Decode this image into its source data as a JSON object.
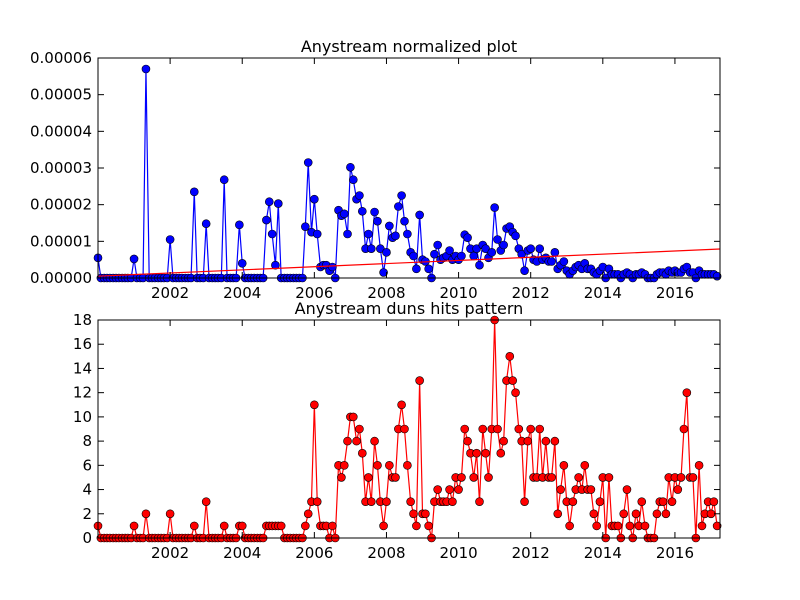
{
  "chart_data": [
    {
      "type": "line",
      "title": "Anystream normalized plot",
      "xlim": [
        2000,
        2017.25
      ],
      "xticks": [
        2002,
        2004,
        2006,
        2008,
        2010,
        2012,
        2014,
        2016
      ],
      "ylim": [
        0,
        6e-05
      ],
      "yticks": [
        {
          "value": 0,
          "label": "0.00000"
        },
        {
          "value": 1e-05,
          "label": "0.00001"
        },
        {
          "value": 2e-05,
          "label": "0.00002"
        },
        {
          "value": 3e-05,
          "label": "0.00003"
        },
        {
          "value": 4e-05,
          "label": "0.00004"
        },
        {
          "value": 5e-05,
          "label": "0.00005"
        },
        {
          "value": 6e-05,
          "label": "0.00006"
        }
      ],
      "series": [
        {
          "color": "#0000ff",
          "marker": true,
          "x": [
            2000,
            2000.08,
            2000.17,
            2000.25,
            2000.33,
            2000.42,
            2000.5,
            2000.58,
            2000.67,
            2000.75,
            2000.83,
            2000.92,
            2001,
            2001.08,
            2001.17,
            2001.25,
            2001.33,
            2001.42,
            2001.5,
            2001.58,
            2001.67,
            2001.75,
            2001.83,
            2001.92,
            2002,
            2002.08,
            2002.17,
            2002.25,
            2002.33,
            2002.42,
            2002.5,
            2002.58,
            2002.67,
            2002.75,
            2002.83,
            2002.92,
            2003,
            2003.08,
            2003.17,
            2003.25,
            2003.33,
            2003.42,
            2003.5,
            2003.58,
            2003.67,
            2003.75,
            2003.83,
            2003.92,
            2004,
            2004.08,
            2004.17,
            2004.25,
            2004.33,
            2004.42,
            2004.5,
            2004.58,
            2004.67,
            2004.75,
            2004.83,
            2004.92,
            2005,
            2005.08,
            2005.17,
            2005.25,
            2005.33,
            2005.42,
            2005.5,
            2005.58,
            2005.67,
            2005.75,
            2005.83,
            2005.92,
            2006,
            2006.08,
            2006.17,
            2006.25,
            2006.33,
            2006.42,
            2006.5,
            2006.58,
            2006.67,
            2006.75,
            2006.83,
            2006.92,
            2007,
            2007.08,
            2007.17,
            2007.25,
            2007.33,
            2007.42,
            2007.5,
            2007.58,
            2007.67,
            2007.75,
            2007.83,
            2007.92,
            2008,
            2008.08,
            2008.17,
            2008.25,
            2008.33,
            2008.42,
            2008.5,
            2008.58,
            2008.67,
            2008.75,
            2008.83,
            2008.92,
            2009,
            2009.08,
            2009.17,
            2009.25,
            2009.33,
            2009.42,
            2009.5,
            2009.58,
            2009.67,
            2009.75,
            2009.83,
            2009.92,
            2010,
            2010.08,
            2010.17,
            2010.25,
            2010.33,
            2010.42,
            2010.5,
            2010.58,
            2010.67,
            2010.75,
            2010.83,
            2010.92,
            2011,
            2011.08,
            2011.17,
            2011.25,
            2011.33,
            2011.42,
            2011.5,
            2011.58,
            2011.67,
            2011.75,
            2011.83,
            2011.92,
            2012,
            2012.08,
            2012.17,
            2012.25,
            2012.33,
            2012.42,
            2012.5,
            2012.58,
            2012.67,
            2012.75,
            2012.83,
            2012.92,
            2013,
            2013.08,
            2013.17,
            2013.25,
            2013.33,
            2013.42,
            2013.5,
            2013.58,
            2013.67,
            2013.75,
            2013.83,
            2013.92,
            2014,
            2014.08,
            2014.17,
            2014.25,
            2014.33,
            2014.42,
            2014.5,
            2014.58,
            2014.67,
            2014.75,
            2014.83,
            2014.92,
            2015,
            2015.08,
            2015.17,
            2015.25,
            2015.33,
            2015.42,
            2015.5,
            2015.58,
            2015.67,
            2015.75,
            2015.83,
            2015.92,
            2016,
            2016.08,
            2016.17,
            2016.25,
            2016.33,
            2016.42,
            2016.5,
            2016.58,
            2016.67,
            2016.75,
            2016.83,
            2016.92,
            2017,
            2017.08,
            2017.17
          ],
          "values": [
            5.5e-06,
            0,
            0,
            0,
            0,
            0,
            0,
            0,
            0,
            0,
            0,
            0,
            5.2e-06,
            0,
            0,
            0,
            5.7e-05,
            0,
            0,
            0,
            0,
            0,
            0,
            0,
            1.05e-05,
            0,
            0,
            0,
            0,
            0,
            0,
            0,
            2.35e-05,
            0,
            0,
            0,
            1.48e-05,
            0,
            0,
            0,
            0,
            0,
            2.68e-05,
            0,
            0,
            0,
            0,
            1.45e-05,
            4e-06,
            0,
            0,
            0,
            0,
            0,
            0,
            0,
            1.58e-05,
            2.08e-05,
            1.2e-05,
            3.5e-06,
            2.03e-05,
            0,
            0,
            0,
            0,
            0,
            0,
            0,
            0,
            1.4e-05,
            3.15e-05,
            1.25e-05,
            2.15e-05,
            1.2e-05,
            3e-06,
            3.5e-06,
            3.5e-06,
            2e-06,
            3e-06,
            0,
            1.85e-05,
            1.7e-05,
            1.75e-05,
            1.2e-05,
            3.02e-05,
            2.68e-05,
            2.15e-05,
            2.25e-05,
            1.82e-05,
            8e-06,
            1.2e-05,
            8e-06,
            1.8e-05,
            1.55e-05,
            8e-06,
            1.5e-06,
            7e-06,
            1.42e-05,
            1.1e-05,
            1.15e-05,
            1.95e-05,
            2.25e-05,
            1.55e-05,
            1.2e-05,
            7e-06,
            6e-06,
            2.5e-06,
            1.72e-05,
            5e-06,
            4.5e-06,
            2.5e-06,
            0,
            6.5e-06,
            9e-06,
            5e-06,
            5.5e-06,
            6e-06,
            7.5e-06,
            5e-06,
            6e-06,
            5e-06,
            6e-06,
            1.18e-05,
            1.1e-05,
            8e-06,
            6e-06,
            8e-06,
            3.5e-06,
            9e-06,
            8e-06,
            5.5e-06,
            7e-06,
            1.92e-05,
            1.05e-05,
            7.5e-06,
            9e-06,
            1.35e-05,
            1.4e-05,
            1.25e-05,
            1.15e-05,
            8e-06,
            6.5e-06,
            2e-06,
            7.5e-06,
            8e-06,
            5e-06,
            4.5e-06,
            8e-06,
            5e-06,
            5.5e-06,
            4.5e-06,
            4.5e-06,
            7e-06,
            2.5e-06,
            3.5e-06,
            4.5e-06,
            2e-06,
            1e-06,
            2e-06,
            3e-06,
            3.5e-06,
            2.5e-06,
            4e-06,
            2.5e-06,
            2.5e-06,
            1.5e-06,
            1e-06,
            2e-06,
            3e-06,
            0,
            2.5e-06,
            1e-06,
            1e-06,
            1e-06,
            0,
            1e-06,
            1.5e-06,
            1e-06,
            0,
            1e-06,
            1e-06,
            1.5e-06,
            1e-06,
            0,
            0,
            0,
            1e-06,
            1.5e-06,
            1.5e-06,
            1e-06,
            2e-06,
            1.5e-06,
            2e-06,
            1.5e-06,
            1.5e-06,
            2.5e-06,
            3e-06,
            1.5e-06,
            1.5e-06,
            0,
            2e-06,
            1e-06,
            1e-06,
            1e-06,
            1e-06,
            1e-06,
            5e-07
          ]
        },
        {
          "color": "#ff0000",
          "marker": false,
          "x": [
            2000,
            2017.25
          ],
          "values": [
            5e-07,
            7.9e-06
          ]
        }
      ]
    },
    {
      "type": "line",
      "title": "Anystream duns hits pattern",
      "xlim": [
        2000,
        2017.25
      ],
      "xticks": [
        2002,
        2004,
        2006,
        2008,
        2010,
        2012,
        2014,
        2016
      ],
      "ylim": [
        0,
        18
      ],
      "yticks": [
        0,
        2,
        4,
        6,
        8,
        10,
        12,
        14,
        16,
        18
      ],
      "series": [
        {
          "color": "#ff0000",
          "marker": true,
          "x": [
            2000,
            2000.08,
            2000.17,
            2000.25,
            2000.33,
            2000.42,
            2000.5,
            2000.58,
            2000.67,
            2000.75,
            2000.83,
            2000.92,
            2001,
            2001.08,
            2001.17,
            2001.25,
            2001.33,
            2001.42,
            2001.5,
            2001.58,
            2001.67,
            2001.75,
            2001.83,
            2001.92,
            2002,
            2002.08,
            2002.17,
            2002.25,
            2002.33,
            2002.42,
            2002.5,
            2002.58,
            2002.67,
            2002.75,
            2002.83,
            2002.92,
            2003,
            2003.08,
            2003.17,
            2003.25,
            2003.33,
            2003.42,
            2003.5,
            2003.58,
            2003.67,
            2003.75,
            2003.83,
            2003.92,
            2004,
            2004.08,
            2004.17,
            2004.25,
            2004.33,
            2004.42,
            2004.5,
            2004.58,
            2004.67,
            2004.75,
            2004.83,
            2004.92,
            2005,
            2005.08,
            2005.17,
            2005.25,
            2005.33,
            2005.42,
            2005.5,
            2005.58,
            2005.67,
            2005.75,
            2005.83,
            2005.92,
            2006,
            2006.08,
            2006.17,
            2006.25,
            2006.33,
            2006.42,
            2006.5,
            2006.58,
            2006.67,
            2006.75,
            2006.83,
            2006.92,
            2007,
            2007.08,
            2007.17,
            2007.25,
            2007.33,
            2007.42,
            2007.5,
            2007.58,
            2007.67,
            2007.75,
            2007.83,
            2007.92,
            2008,
            2008.08,
            2008.17,
            2008.25,
            2008.33,
            2008.42,
            2008.5,
            2008.58,
            2008.67,
            2008.75,
            2008.83,
            2008.92,
            2009,
            2009.08,
            2009.17,
            2009.25,
            2009.33,
            2009.42,
            2009.5,
            2009.58,
            2009.67,
            2009.75,
            2009.83,
            2009.92,
            2010,
            2010.08,
            2010.17,
            2010.25,
            2010.33,
            2010.42,
            2010.5,
            2010.58,
            2010.67,
            2010.75,
            2010.83,
            2010.92,
            2011,
            2011.08,
            2011.17,
            2011.25,
            2011.33,
            2011.42,
            2011.5,
            2011.58,
            2011.67,
            2011.75,
            2011.83,
            2011.92,
            2012,
            2012.08,
            2012.17,
            2012.25,
            2012.33,
            2012.42,
            2012.5,
            2012.58,
            2012.67,
            2012.75,
            2012.83,
            2012.92,
            2013,
            2013.08,
            2013.17,
            2013.25,
            2013.33,
            2013.42,
            2013.5,
            2013.58,
            2013.67,
            2013.75,
            2013.83,
            2013.92,
            2014,
            2014.08,
            2014.17,
            2014.25,
            2014.33,
            2014.42,
            2014.5,
            2014.58,
            2014.67,
            2014.75,
            2014.83,
            2014.92,
            2015,
            2015.08,
            2015.17,
            2015.25,
            2015.33,
            2015.42,
            2015.5,
            2015.58,
            2015.67,
            2015.75,
            2015.83,
            2015.92,
            2016,
            2016.08,
            2016.17,
            2016.25,
            2016.33,
            2016.42,
            2016.5,
            2016.58,
            2016.67,
            2016.75,
            2016.83,
            2016.92,
            2017,
            2017.08,
            2017.17
          ],
          "values": [
            1,
            0,
            0,
            0,
            0,
            0,
            0,
            0,
            0,
            0,
            0,
            0,
            1,
            0,
            0,
            0,
            2,
            0,
            0,
            0,
            0,
            0,
            0,
            0,
            2,
            0,
            0,
            0,
            0,
            0,
            0,
            0,
            1,
            0,
            0,
            0,
            3,
            0,
            0,
            0,
            0,
            0,
            1,
            0,
            0,
            0,
            0,
            1,
            1,
            0,
            0,
            0,
            0,
            0,
            0,
            0,
            1,
            1,
            1,
            1,
            1,
            1,
            0,
            0,
            0,
            0,
            0,
            0,
            0,
            1,
            2,
            3,
            11,
            3,
            1,
            1,
            1,
            0,
            1,
            0,
            6,
            5,
            6,
            8,
            10,
            10,
            8,
            9,
            7,
            3,
            5,
            3,
            8,
            6,
            3,
            1,
            3,
            6,
            5,
            5,
            9,
            11,
            9,
            6,
            3,
            2,
            1,
            13,
            2,
            2,
            1,
            0,
            3,
            4,
            3,
            3,
            3,
            4,
            3,
            5,
            4,
            5,
            9,
            8,
            7,
            5,
            7,
            3,
            9,
            7,
            5,
            9,
            18,
            9,
            7,
            8,
            13,
            15,
            13,
            12,
            9,
            8,
            3,
            8,
            9,
            5,
            5,
            9,
            5,
            8,
            5,
            5,
            8,
            2,
            4,
            6,
            3,
            1,
            3,
            4,
            5,
            4,
            6,
            4,
            4,
            2,
            1,
            3,
            5,
            0,
            5,
            1,
            1,
            1,
            0,
            2,
            4,
            1,
            0,
            2,
            1,
            3,
            1,
            0,
            0,
            0,
            2,
            3,
            3,
            2,
            5,
            3,
            5,
            4,
            5,
            9,
            12,
            5,
            5,
            0,
            6,
            1,
            2,
            3,
            2,
            3,
            1
          ]
        }
      ]
    }
  ]
}
